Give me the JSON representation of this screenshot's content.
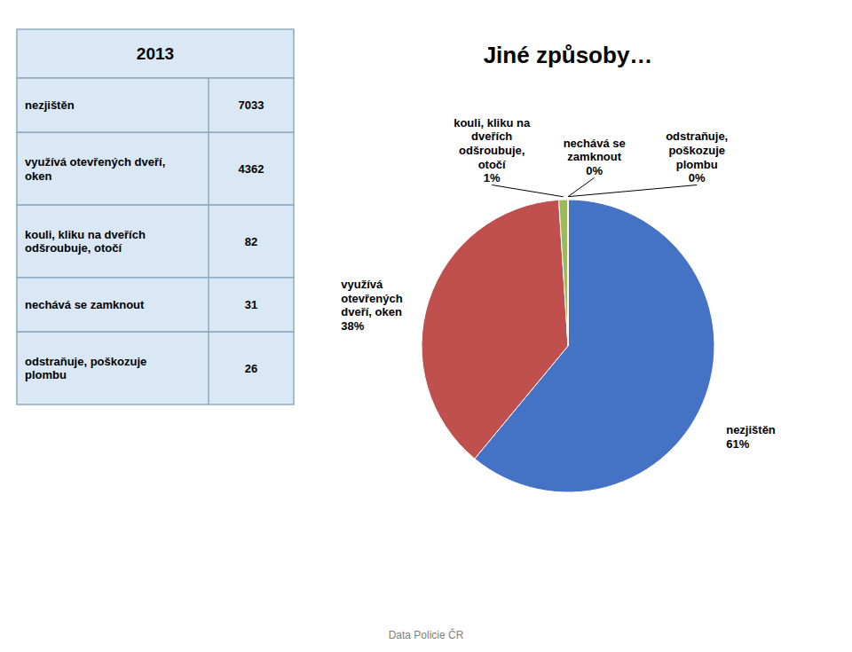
{
  "chart_data": [
    {
      "type": "table",
      "title": "2013",
      "categories": [
        "nezjištěn",
        "využívá otevřených dveří,\noken",
        "kouli, kliku na dveřích\nodšroubuje, otočí",
        "nechává se zamknout",
        "odstraňuje, poškozuje\nplombu"
      ],
      "values": [
        7033,
        4362,
        82,
        31,
        26
      ],
      "color": "#DAE8F5"
    },
    {
      "type": "pie",
      "title": "Jiné způsoby…",
      "categories": [
        "nezjištěn",
        "využívá\notevřených\ndveří, oken",
        "kouli, kliku na\ndveřích\nodšroubuje,\notočí",
        "nechává se\nzamknout",
        "odstraňuje,\npoškozuje\nplombu"
      ],
      "values": [
        61,
        38,
        1,
        0,
        0
      ],
      "value_labels": [
        "61%",
        "38%",
        "1%",
        "0%",
        "0%"
      ],
      "colors": [
        "#4472C4",
        "#C0504D",
        "#9BBB59",
        "#4BACC6",
        "#8064A2"
      ],
      "data_labels": true,
      "footer": "Data Policie ČR"
    }
  ]
}
